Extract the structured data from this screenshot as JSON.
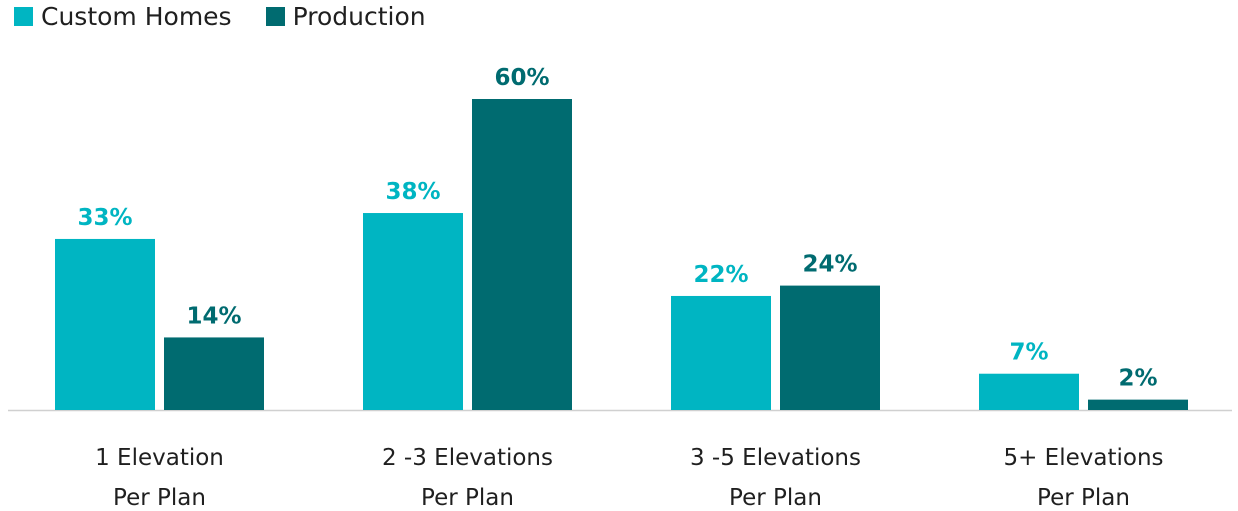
{
  "chart_data": {
    "type": "bar",
    "categories": [
      [
        "1 Elevation",
        "Per Plan"
      ],
      [
        "2 -3 Elevations",
        "Per Plan"
      ],
      [
        "3 -5 Elevations",
        "Per Plan"
      ],
      [
        "5+ Elevations",
        "Per Plan"
      ]
    ],
    "series": [
      {
        "name": "Custom Homes",
        "color": "#00b5c2",
        "values": [
          33,
          38,
          22,
          7
        ],
        "labels": [
          "33%",
          "38%",
          "22%",
          "7%"
        ]
      },
      {
        "name": "Production",
        "color": "#006b70",
        "values": [
          14,
          60,
          24,
          2
        ],
        "labels": [
          "14%",
          "60%",
          "24%",
          "2%"
        ]
      }
    ],
    "title": "",
    "xlabel": "",
    "ylabel": "",
    "ylim": [
      0,
      60
    ],
    "grid": false,
    "legend_position": "top-left"
  }
}
